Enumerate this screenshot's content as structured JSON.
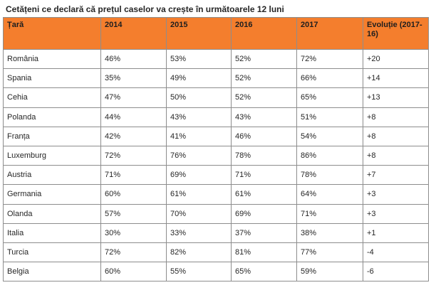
{
  "title": "Cetățeni ce declară că prețul caselor va crește în următoarele  12 luni",
  "table": {
    "headers": [
      "Țară",
      "2014",
      "2015",
      "2016",
      "2017",
      "Evoluție (2017-16)"
    ],
    "rows": [
      [
        "România",
        "46%",
        "53%",
        "52%",
        "72%",
        "+20"
      ],
      [
        "Spania",
        "35%",
        "49%",
        "52%",
        "66%",
        "+14"
      ],
      [
        "Cehia",
        "47%",
        "50%",
        "52%",
        "65%",
        "+13"
      ],
      [
        "Polanda",
        "44%",
        "43%",
        "43%",
        "51%",
        "+8"
      ],
      [
        "Franța",
        "42%",
        "41%",
        "46%",
        "54%",
        "+8"
      ],
      [
        "Luxemburg",
        "72%",
        "76%",
        "78%",
        "86%",
        "+8"
      ],
      [
        "Austria",
        "71%",
        "69%",
        "71%",
        "78%",
        "+7"
      ],
      [
        "Germania",
        "60%",
        "61%",
        "61%",
        "64%",
        "+3"
      ],
      [
        "Olanda",
        "57%",
        "70%",
        "69%",
        "71%",
        "+3"
      ],
      [
        "Italia",
        "30%",
        "33%",
        "37%",
        "38%",
        "+1"
      ],
      [
        "Turcia",
        "72%",
        "82%",
        "81%",
        "77%",
        "-4"
      ],
      [
        "Belgia",
        "60%",
        "55%",
        "65%",
        "59%",
        "-6"
      ]
    ]
  },
  "colors": {
    "header_background": "#f47e2d",
    "border": "#8d8d8d",
    "text": "#262626"
  }
}
